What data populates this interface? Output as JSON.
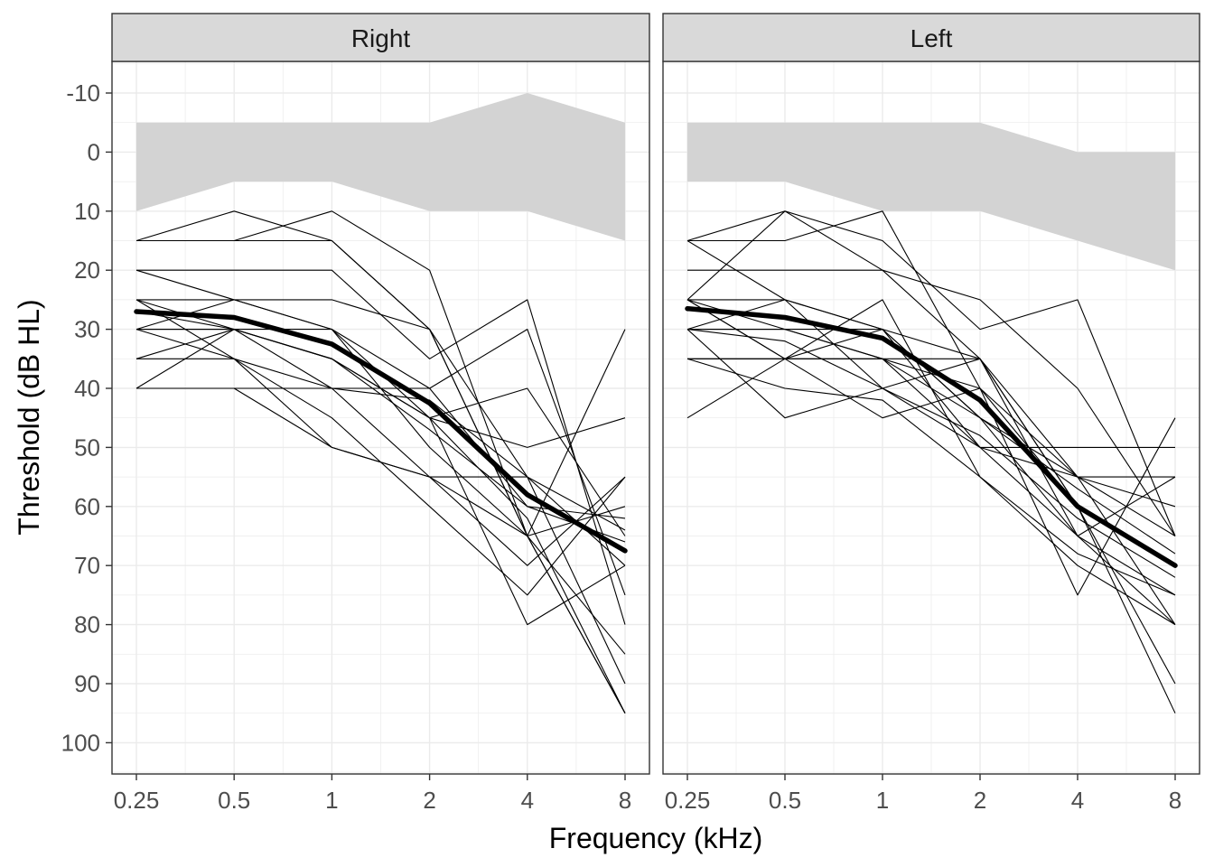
{
  "chart_data": {
    "type": "line",
    "xlabel": "Frequency (kHz)",
    "ylabel": "Threshold (dB HL)",
    "x_scale": "log2",
    "y_reversed": true,
    "ylim": [
      -15,
      105
    ],
    "x": [
      0.25,
      0.5,
      1,
      2,
      4,
      8
    ],
    "x_tick_labels": [
      "0.25",
      "0.5",
      "1",
      "2",
      "4",
      "8"
    ],
    "y_ticks": [
      -10,
      0,
      10,
      20,
      30,
      40,
      50,
      60,
      70,
      80,
      90,
      100
    ],
    "grid": true,
    "legend": "none",
    "colors": {
      "individual": "#000000",
      "mean": "#000000",
      "normal_range": "#d3d3d3",
      "strip": "#d9d9d9"
    },
    "panels": [
      {
        "name": "Right",
        "normal_range": {
          "lower": [
            -5,
            -5,
            -5,
            -5,
            -10,
            -5
          ],
          "upper": [
            10,
            5,
            5,
            10,
            10,
            15
          ]
        },
        "mean": [
          27,
          28,
          32.5,
          42.5,
          58,
          67.5
        ],
        "individuals": [
          [
            15,
            10,
            15,
            30,
            65,
            95
          ],
          [
            15,
            15,
            10,
            20,
            65,
            95
          ],
          [
            15,
            15,
            15,
            30,
            65,
            85
          ],
          [
            20,
            20,
            20,
            35,
            25,
            80
          ],
          [
            20,
            25,
            30,
            40,
            30,
            75
          ],
          [
            25,
            25,
            25,
            30,
            55,
            70
          ],
          [
            25,
            30,
            35,
            45,
            40,
            65
          ],
          [
            30,
            30,
            35,
            45,
            50,
            45
          ],
          [
            30,
            25,
            30,
            50,
            65,
            60
          ],
          [
            35,
            30,
            40,
            55,
            70,
            55
          ],
          [
            35,
            35,
            45,
            60,
            75,
            55
          ],
          [
            40,
            40,
            50,
            55,
            65,
            30
          ],
          [
            40,
            30,
            35,
            45,
            80,
            70
          ],
          [
            30,
            35,
            50,
            55,
            55,
            90
          ],
          [
            25,
            35,
            40,
            40,
            60,
            62
          ],
          [
            30,
            30,
            30,
            45,
            62,
            95
          ],
          [
            40,
            40,
            40,
            42,
            55,
            64
          ],
          [
            27,
            30,
            35,
            47,
            60,
            66
          ]
        ]
      },
      {
        "name": "Left",
        "normal_range": {
          "lower": [
            -5,
            -5,
            -5,
            -5,
            0,
            0
          ],
          "upper": [
            5,
            5,
            10,
            10,
            15,
            20
          ]
        },
        "mean": [
          26.5,
          28,
          31.5,
          42,
          60,
          70
        ],
        "individuals": [
          [
            15,
            25,
            30,
            35,
            60,
            95
          ],
          [
            15,
            10,
            20,
            35,
            55,
            80
          ],
          [
            15,
            15,
            10,
            40,
            75,
            45
          ],
          [
            20,
            20,
            20,
            25,
            40,
            65
          ],
          [
            25,
            10,
            15,
            30,
            25,
            65
          ],
          [
            25,
            25,
            30,
            50,
            50,
            50
          ],
          [
            25,
            35,
            35,
            50,
            55,
            55
          ],
          [
            30,
            30,
            35,
            45,
            55,
            60
          ],
          [
            30,
            45,
            40,
            35,
            60,
            70
          ],
          [
            35,
            35,
            35,
            35,
            65,
            75
          ],
          [
            45,
            35,
            25,
            55,
            70,
            80
          ],
          [
            30,
            25,
            40,
            50,
            65,
            80
          ],
          [
            25,
            35,
            45,
            40,
            60,
            90
          ],
          [
            35,
            35,
            30,
            45,
            65,
            55
          ],
          [
            30,
            30,
            35,
            40,
            55,
            65
          ],
          [
            25,
            30,
            30,
            45,
            57,
            68
          ],
          [
            30,
            32,
            40,
            48,
            62,
            72
          ],
          [
            35,
            40,
            42,
            55,
            68,
            75
          ]
        ]
      }
    ]
  }
}
